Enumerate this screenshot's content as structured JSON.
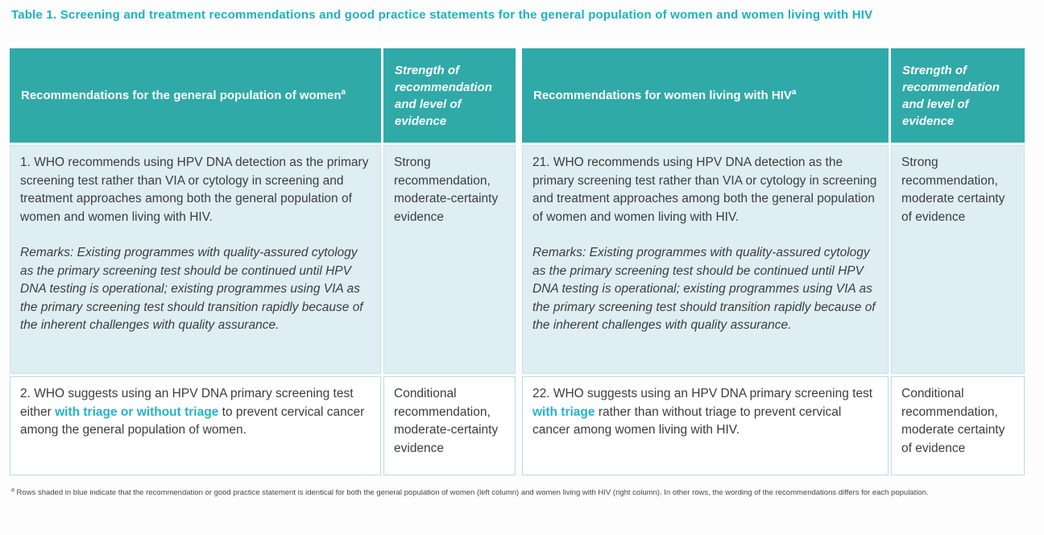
{
  "title": "Table 1. Screening and treatment recommendations and good practice statements for the general population of women and women living with HIV",
  "table": {
    "headers": [
      {
        "label": "Recommendations for the general population of women",
        "sup": "a"
      },
      {
        "label": "Strength of recommendation and level of evidence",
        "sup": ""
      },
      {
        "label": "Recommendations for women living with HIV",
        "sup": "a"
      },
      {
        "label": "Strength of recommendation and level of evidence",
        "sup": ""
      }
    ],
    "rows": [
      {
        "shaded": true,
        "general": {
          "paragraph": "1. WHO recommends using HPV DNA detection as the primary screening test rather than VIA or cytology in screening and treatment approaches among both the general population of women and women living with HIV.",
          "remarks": "Remarks: Existing programmes with quality-assured cytology as the primary screening test should be continued until HPV DNA testing is operational; existing programmes using VIA as the primary screening test should transition rapidly because of the inherent challenges with quality assurance."
        },
        "general_strength": "Strong recommendation, moderate-certainty evidence",
        "hiv": {
          "paragraph": "21. WHO recommends using HPV DNA detection as the primary screening test rather than VIA or cytology in screening and treatment approaches among both the general population of women and women living with HIV.",
          "remarks": "Remarks: Existing programmes with quality-assured cytology as the primary screening test should be continued until HPV DNA testing is operational; existing programmes using VIA as the primary screening test should transition rapidly because of the inherent challenges with quality assurance."
        },
        "hiv_strength": "Strong recommendation, moderate certainty of evidence"
      },
      {
        "shaded": false,
        "general_segments": [
          {
            "text": "2. WHO suggests using an HPV DNA primary screening test either ",
            "highlight": false
          },
          {
            "text": "with triage or without triage",
            "highlight": true
          },
          {
            "text": " to prevent cervical cancer among the general population of women.",
            "highlight": false
          }
        ],
        "general_strength": "Conditional recommendation, moderate-certainty evidence",
        "hiv_segments": [
          {
            "text": "22. WHO suggests using an HPV DNA primary screening test ",
            "highlight": false
          },
          {
            "text": "with triage",
            "highlight": true
          },
          {
            "text": " rather than without triage to prevent cervical cancer among women living with HIV.",
            "highlight": false
          }
        ],
        "hiv_strength": "Conditional recommendation, moderate certainty of evidence"
      }
    ]
  },
  "footnote": {
    "marker": "a",
    "text": "Rows shaded in blue indicate that the recommendation or good practice statement is identical for both the general population of women (left column) and women living with HIV (right column). In other rows, the wording of the recommendations differs for each population."
  },
  "colors": {
    "title_teal": "#1db1c3",
    "header_teal": "#2faaa8",
    "shaded_row_blue": "#dfeef3",
    "highlight_teal": "#25b4c7",
    "cell_border": "#b9dce6",
    "body_text": "#3d3d3d"
  }
}
